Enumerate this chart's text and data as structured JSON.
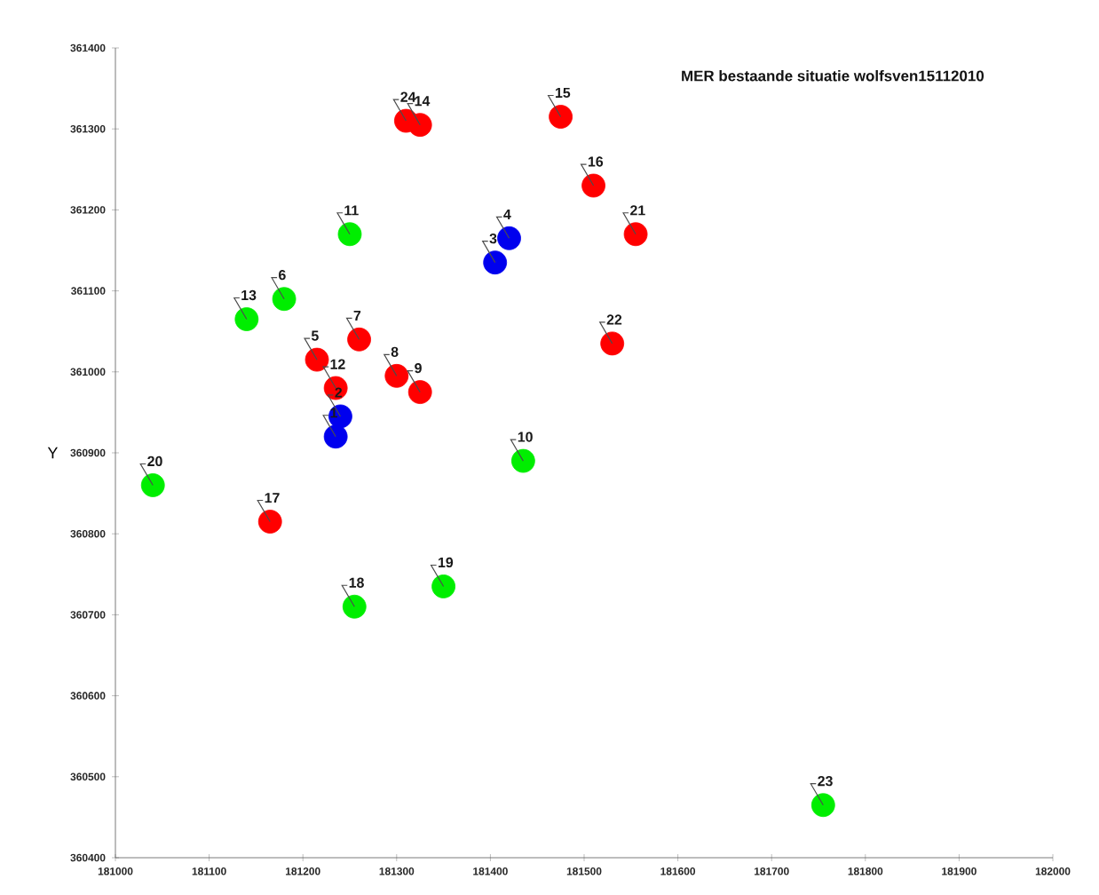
{
  "chart_data": {
    "type": "scatter",
    "title": "MER bestaande situatie wolfsven15112010",
    "ylabel": "Y",
    "xlim": [
      181000,
      182000
    ],
    "xticks": [
      181000,
      181100,
      181200,
      181300,
      181400,
      181500,
      181600,
      181700,
      181800,
      181900,
      182000
    ],
    "ylim": [
      360400,
      361400
    ],
    "yticks": [
      360400,
      360500,
      360600,
      360700,
      360800,
      360900,
      361000,
      361100,
      361200,
      361300,
      361400
    ],
    "marker": "circle",
    "series": [
      {
        "color": "#ff0000",
        "x": [
          181310,
          181325,
          181260,
          181215,
          181235,
          181300,
          181325,
          181475,
          181510,
          181165,
          181555,
          181530
        ],
        "values": [
          361310,
          361305,
          361040,
          361015,
          360980,
          360995,
          360975,
          361315,
          361230,
          360815,
          361170,
          361035
        ]
      },
      {
        "color": "#00ee00",
        "x": [
          181250,
          181180,
          181140,
          181435,
          181040,
          181255,
          181350,
          181755
        ],
        "values": [
          361170,
          361090,
          361065,
          360890,
          360860,
          360710,
          360735,
          360465
        ]
      },
      {
        "color": "#0000ee",
        "x": [
          181420,
          181405,
          181240,
          181235
        ],
        "values": [
          361165,
          361135,
          360945,
          360920
        ]
      }
    ],
    "annotations": [
      {
        "text": "24",
        "x": 181310,
        "y": 361310
      },
      {
        "text": "14",
        "x": 181325,
        "y": 361305
      },
      {
        "text": "7",
        "x": 181260,
        "y": 361040
      },
      {
        "text": "5",
        "x": 181215,
        "y": 361015
      },
      {
        "text": "12",
        "x": 181235,
        "y": 360980
      },
      {
        "text": "8",
        "x": 181300,
        "y": 360995
      },
      {
        "text": "9",
        "x": 181325,
        "y": 360975
      },
      {
        "text": "15",
        "x": 181475,
        "y": 361315
      },
      {
        "text": "16",
        "x": 181510,
        "y": 361230
      },
      {
        "text": "17",
        "x": 181165,
        "y": 360815
      },
      {
        "text": "21",
        "x": 181555,
        "y": 361170
      },
      {
        "text": "22",
        "x": 181530,
        "y": 361035
      },
      {
        "text": "11",
        "x": 181250,
        "y": 361170
      },
      {
        "text": "6",
        "x": 181180,
        "y": 361090
      },
      {
        "text": "13",
        "x": 181140,
        "y": 361065
      },
      {
        "text": "10",
        "x": 181435,
        "y": 360890
      },
      {
        "text": "20",
        "x": 181040,
        "y": 360860
      },
      {
        "text": "18",
        "x": 181255,
        "y": 360710
      },
      {
        "text": "19",
        "x": 181350,
        "y": 360735
      },
      {
        "text": "23",
        "x": 181755,
        "y": 360465
      },
      {
        "text": "4",
        "x": 181420,
        "y": 361165
      },
      {
        "text": "3",
        "x": 181405,
        "y": 361135
      },
      {
        "text": "2",
        "x": 181240,
        "y": 360945
      },
      {
        "text": "1",
        "x": 181235,
        "y": 360920
      }
    ]
  }
}
